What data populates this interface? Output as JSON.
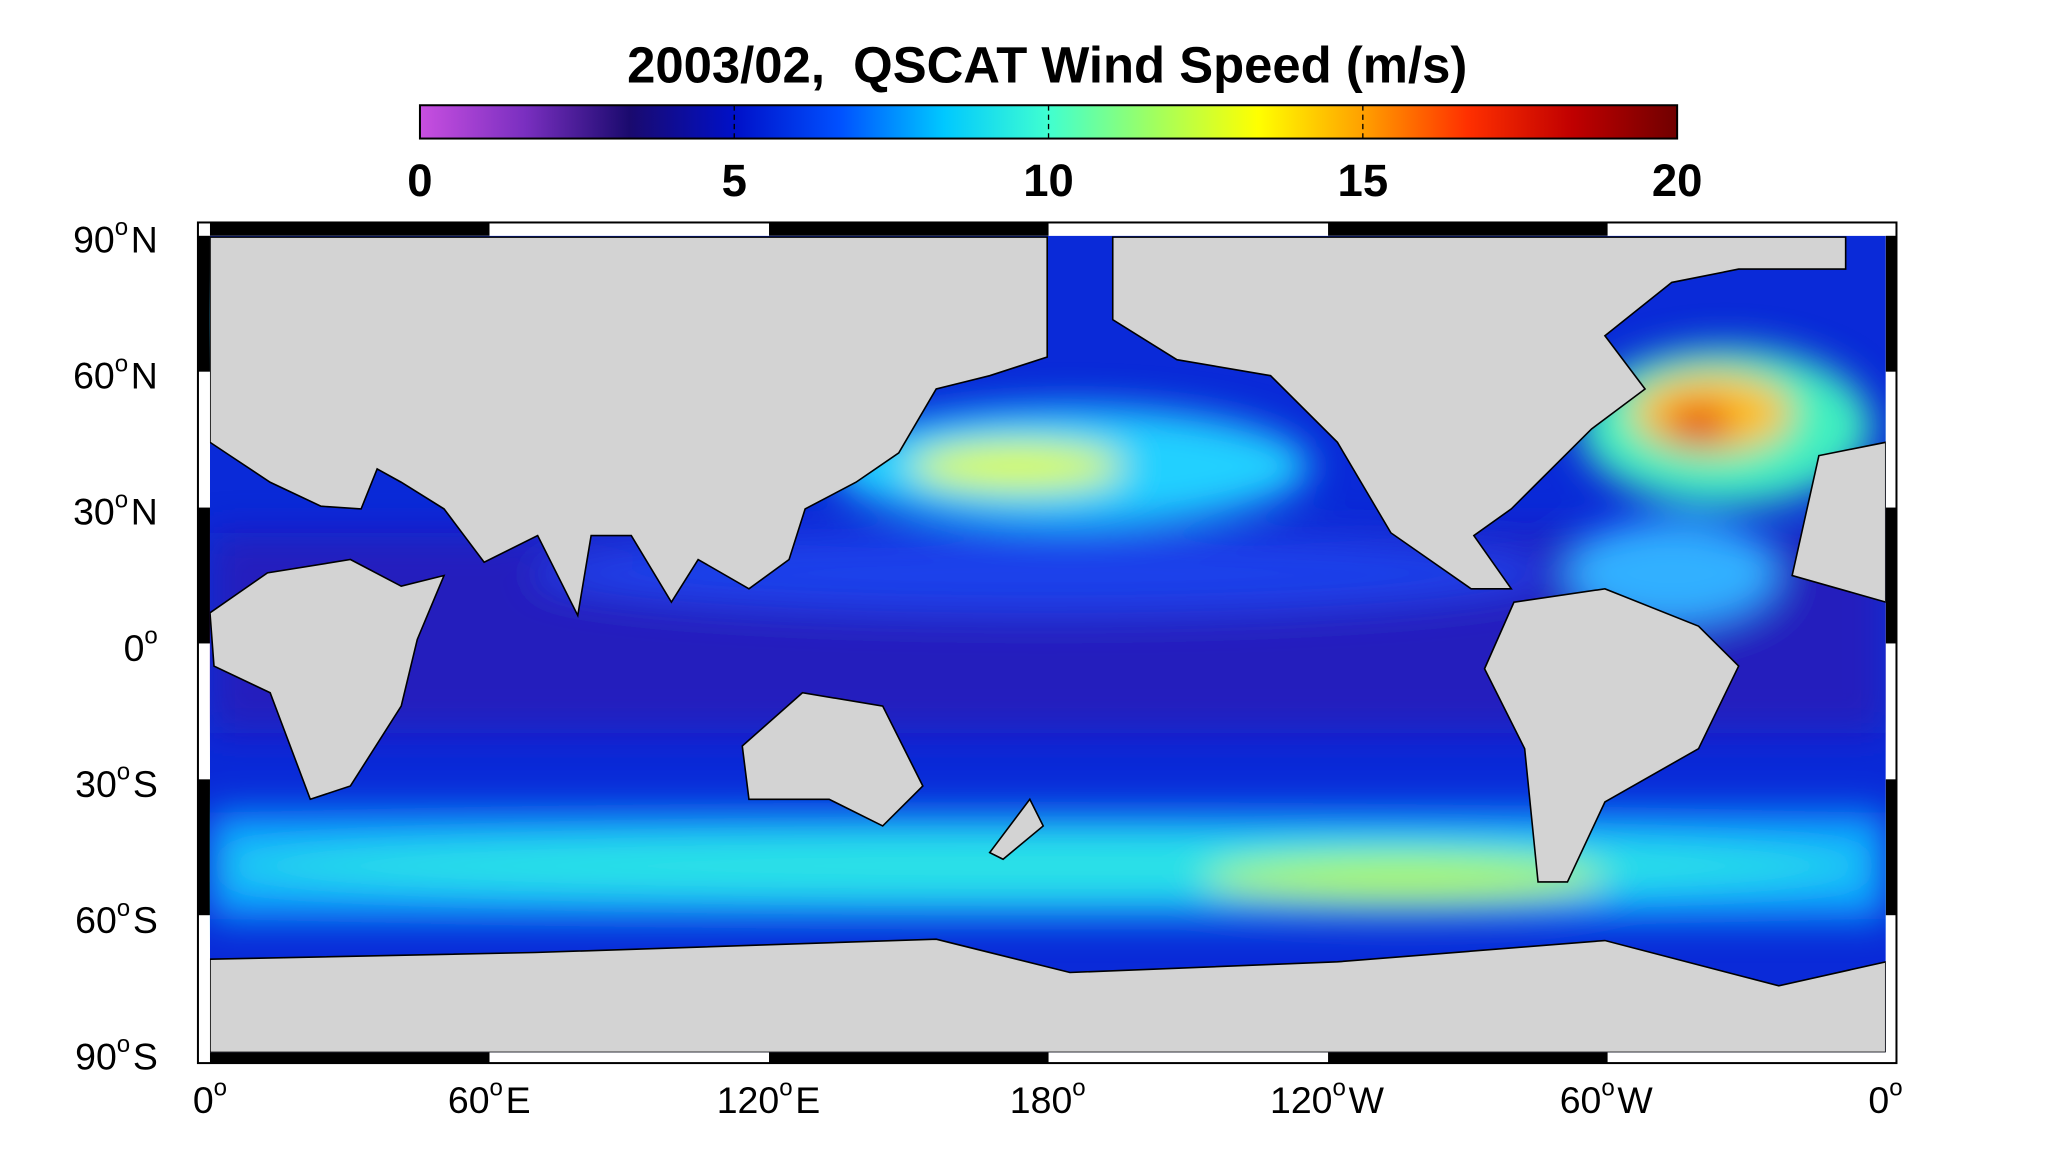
{
  "title": "2003/02,  QSCAT Wind Speed (m/s)",
  "colorbar": {
    "range": [
      0,
      20
    ],
    "ticks": [
      0,
      5,
      10,
      15,
      20
    ],
    "colormap": [
      "#c84fe0",
      "#7a2fc0",
      "#1a0a6e",
      "#0010c8",
      "#0050ff",
      "#00c8ff",
      "#40ffd0",
      "#a0ff60",
      "#ffff00",
      "#ffa000",
      "#ff3000",
      "#c00000",
      "#700000"
    ]
  },
  "lat_labels": [
    {
      "num": "90",
      "mark": "o",
      "hemi": "N"
    },
    {
      "num": "60",
      "mark": "o",
      "hemi": "N"
    },
    {
      "num": "30",
      "mark": "o",
      "hemi": "N"
    },
    {
      "num": "0",
      "mark": "o",
      "hemi": ""
    },
    {
      "num": "30",
      "mark": "o",
      "hemi": "S"
    },
    {
      "num": "60",
      "mark": "o",
      "hemi": "S"
    },
    {
      "num": "90",
      "mark": "o",
      "hemi": "S"
    }
  ],
  "lon_labels": [
    {
      "num": "0",
      "mark": "o",
      "hemi": ""
    },
    {
      "num": "60",
      "mark": "o",
      "hemi": "E"
    },
    {
      "num": "120",
      "mark": "o",
      "hemi": "E"
    },
    {
      "num": "180",
      "mark": "o",
      "hemi": ""
    },
    {
      "num": "120",
      "mark": "o",
      "hemi": "W"
    },
    {
      "num": "60",
      "mark": "o",
      "hemi": "W"
    },
    {
      "num": "0",
      "mark": "o",
      "hemi": ""
    }
  ]
}
